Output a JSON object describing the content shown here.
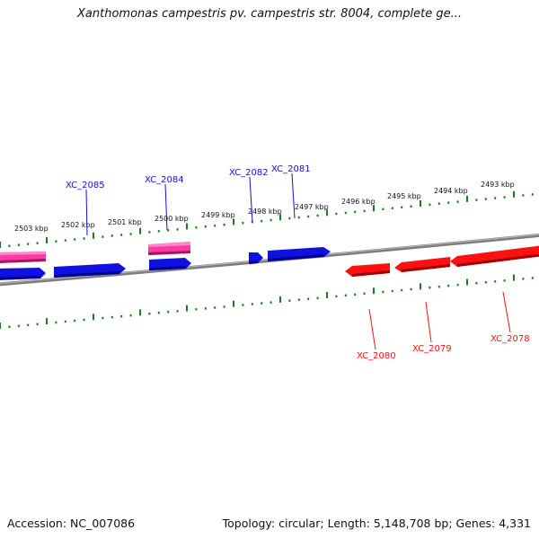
{
  "title": "Xanthomonas campestris pv. campestris str. 8004, complete ge...",
  "ruler": {
    "labels": [
      "2503 kbp",
      "2502 kbp",
      "2501 kbp",
      "2500 kbp",
      "2499 kbp",
      "2498 kbp",
      "2497 kbp",
      "2496 kbp",
      "2495 kbp",
      "2494 kbp",
      "2493 kbp"
    ]
  },
  "genes": {
    "forward": [
      "XC_2085",
      "XC_2084",
      "XC_2082",
      "XC_2081"
    ],
    "reverse": [
      "XC_2080",
      "XC_2079",
      "XC_2078"
    ]
  },
  "colors": {
    "forward": "#1010e0",
    "reverse": "#ff1010",
    "pink": "#ee3399",
    "tick": "#1e7a1e",
    "backbone": "#808080"
  },
  "footer": {
    "accession": "Accession: NC_007086",
    "summary": "Topology: circular; Length: 5,148,708 bp; Genes: 4,331"
  }
}
